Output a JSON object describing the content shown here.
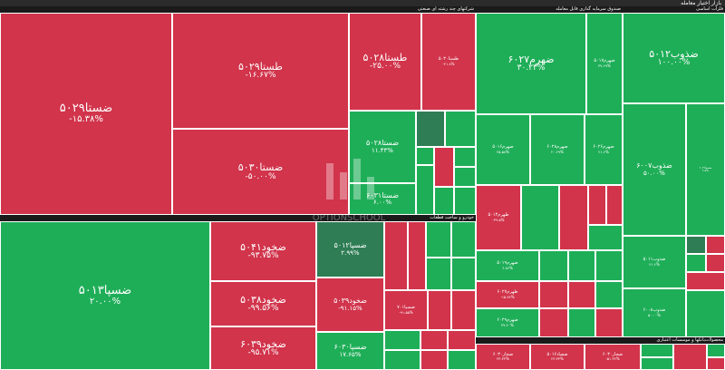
{
  "header": {
    "title": "بازار اختیار معامله"
  },
  "sectors": {
    "s1": "شرکتهای چند رشته ای صنعتی",
    "s2": "صندوق سرمایه گذاری قابل معامله",
    "s3": "فلزات اساسی",
    "s4": "خودرو و ساخت قطعات",
    "s5": "بانکها و موسسات اعتباری",
    "s6": "محصولات"
  },
  "tiles": {
    "t1": {
      "sym": "ضستا۵۰۲۹",
      "pct": "-۱۵.۳۸%"
    },
    "t2": {
      "sym": "طستا۵۰۲۹",
      "pct": "-۱۶.۶۷%"
    },
    "t3": {
      "sym": "طستا۵۰۲۸",
      "pct": "-۲۵.۰۰%"
    },
    "t4": {
      "sym": "طستا۵۰۳۰",
      "pct": "-۲۱.۸%"
    },
    "t5": {
      "sym": "ضستا۵۰۳۰",
      "pct": "-۵۰.۰۰%"
    },
    "t6": {
      "sym": "ضستا۵۰۲۸",
      "pct": "۱۱.۴۳%"
    },
    "t7": {
      "sym": "ضستا۶۰۳۱",
      "pct": "۶.۰۰%"
    },
    "t8": {
      "sym": "ضهرم۶۰۲۷",
      "pct": "۳۰.۲۳%"
    },
    "t9": {
      "sym": "ضهرم۵۰۱۷",
      "pct": "۳۷.۶۹%"
    },
    "t10": {
      "sym": "ضذوب۵۰۱۲",
      "pct": "۱۰۰.۰۰%"
    },
    "t11": {
      "sym": "ضهرم۵۰۱۶",
      "pct": "۲۵.۵۸%"
    },
    "t12": {
      "sym": "ضهرم۶۰۲۸",
      "pct": "۲۰.۶۹%"
    },
    "t13": {
      "sym": "ضهرم۶۰۲۶",
      "pct": "۲۱.۶%"
    },
    "t14": {
      "sym": "ضذوب۶۰۰۷",
      "pct": "۵۰.۰۰%"
    },
    "t15": {
      "sym": "ضسپا۵۰۱۳",
      "pct": "۲۰.۰۰%"
    },
    "t16": {
      "sym": "ضخود۵۰۴۱",
      "pct": "-۹۳.۷۵%"
    },
    "t17": {
      "sym": "ضخود۵۰۳۸",
      "pct": "-۹۹.۵۶%"
    },
    "t18": {
      "sym": "ضخود۶۰۳۹",
      "pct": "-۹۵.۷۱%"
    },
    "t19": {
      "sym": "ضسپا۵۰۱۲",
      "pct": "۲.۹۹%"
    },
    "t20": {
      "sym": "ضخود۵۰۳۹",
      "pct": "-۹۱.۱۵%"
    },
    "t21": {
      "sym": "ضسپا۶۰۳۰",
      "pct": "۱۷.۶۵%"
    },
    "t22": {
      "sym": "ضهرم۵۰۱۹",
      "pct": "۶.۸۲%"
    },
    "t23": {
      "sym": "طهرم۶۰۲۷",
      "pct": "-۱۵.۷۴%"
    },
    "t24": {
      "sym": "ضهرم۶۰۲۹",
      "pct": "۳۷.۲۰%"
    },
    "t25": {
      "sym": "ضصاد۵۰۱۶",
      "pct": "۲۳.۳۳%"
    },
    "t26": {
      "sym": "ضجار۶۰۳۰",
      "pct": "-۵۱.۳۴%"
    },
    "t27": {
      "sym": "ضجار۶۰۳۰",
      "pct": "۳۳.۳۳%"
    },
    "t28": {
      "sym": "طهرم۶۰۲۶",
      "pct": "-۲۹.۳۶%"
    },
    "t29": {
      "sym": "ضذوب۵۰۱۱",
      "pct": "۲۱.۶%"
    },
    "t30": {
      "sym": "ضذوب۶۰۰۸",
      "pct": "۵۰.۰۰%"
    },
    "t31": {
      "sym": "ضسپا۶۰۳۱",
      "pct": "۶.۸%"
    }
  },
  "watermark": {
    "text": "OPTIONSCHOOL"
  }
}
